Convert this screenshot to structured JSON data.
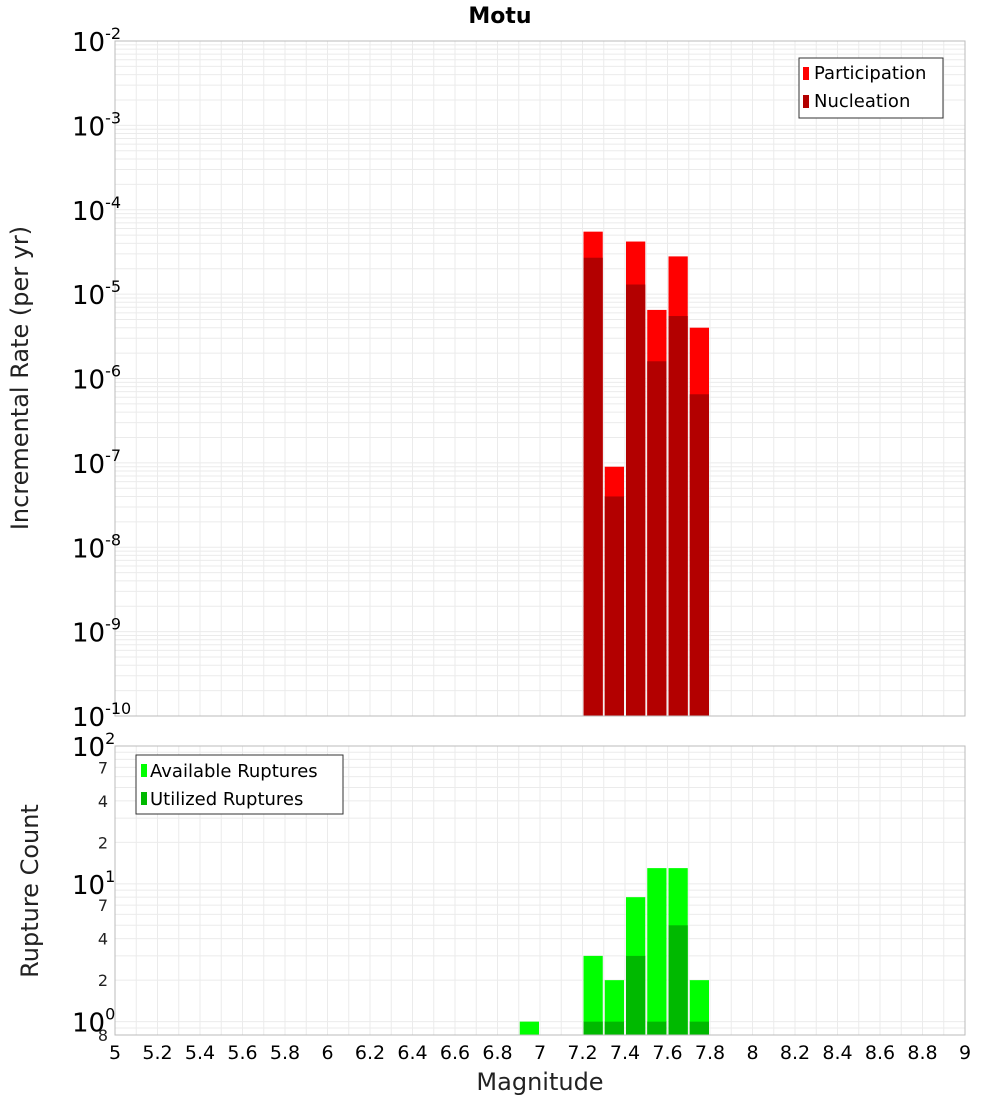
{
  "chart_data": [
    {
      "id": "rate",
      "type": "bar",
      "title": "Motu",
      "xlabel": "Magnitude",
      "ylabel": "Incremental Rate (per yr)",
      "yscale": "log",
      "ylim": [
        1e-10,
        0.01
      ],
      "xlim": [
        5,
        9
      ],
      "bin_width": 0.1,
      "bar_centers": [
        7.25,
        7.35,
        7.45,
        7.55,
        7.65,
        7.75
      ],
      "series": [
        {
          "name": "Participation",
          "color": "#ff0000",
          "values": [
            5.5e-05,
            9e-08,
            4.2e-05,
            6.5e-06,
            2.8e-05,
            4e-06
          ]
        },
        {
          "name": "Nucleation",
          "color": "#b30000",
          "values": [
            2.7e-05,
            4e-08,
            1.3e-05,
            1.6e-06,
            5.5e-06,
            6.5e-07
          ]
        }
      ],
      "legend_position": "top-right",
      "y_tick_exponents": [
        "-2",
        "-3",
        "-4",
        "-5",
        "-6",
        "-7",
        "-8",
        "-9",
        "-10"
      ]
    },
    {
      "id": "count",
      "type": "bar",
      "title": "",
      "xlabel": "Magnitude",
      "ylabel": "Rupture Count",
      "yscale": "log",
      "ylim": [
        0.8,
        100
      ],
      "xlim": [
        5,
        9
      ],
      "bin_width": 0.1,
      "bar_centers": [
        6.95,
        7.25,
        7.35,
        7.45,
        7.55,
        7.65,
        7.75
      ],
      "series": [
        {
          "name": "Available Ruptures",
          "color": "#00ff00",
          "values": [
            1,
            3,
            2,
            8,
            13,
            13,
            2
          ]
        },
        {
          "name": "Utilized Ruptures",
          "color": "#00b900",
          "values": [
            0,
            1,
            1,
            3,
            1,
            5,
            1
          ]
        }
      ],
      "legend_position": "top-left",
      "y_ticks": [
        {
          "value": 100,
          "base": "10",
          "exp": "2"
        },
        {
          "value": 70,
          "label": "7"
        },
        {
          "value": 40,
          "label": "4"
        },
        {
          "value": 20,
          "label": "2"
        },
        {
          "value": 10,
          "base": "10",
          "exp": "1"
        },
        {
          "value": 7,
          "label": "7"
        },
        {
          "value": 4,
          "label": "4"
        },
        {
          "value": 2,
          "label": "2"
        },
        {
          "value": 1,
          "base": "10",
          "exp": "0"
        },
        {
          "value": 0.8,
          "label": "8"
        }
      ]
    }
  ],
  "x_tick_labels": [
    "5",
    "5.2",
    "5.4",
    "5.6",
    "5.8",
    "6",
    "6.2",
    "6.4",
    "6.6",
    "6.8",
    "7",
    "7.2",
    "7.4",
    "7.6",
    "7.8",
    "8",
    "8.2",
    "8.4",
    "8.6",
    "8.8",
    "9"
  ],
  "colors": {
    "grid": "#ebebeb",
    "border": "#bbbbbb",
    "background": "#ffffff"
  }
}
